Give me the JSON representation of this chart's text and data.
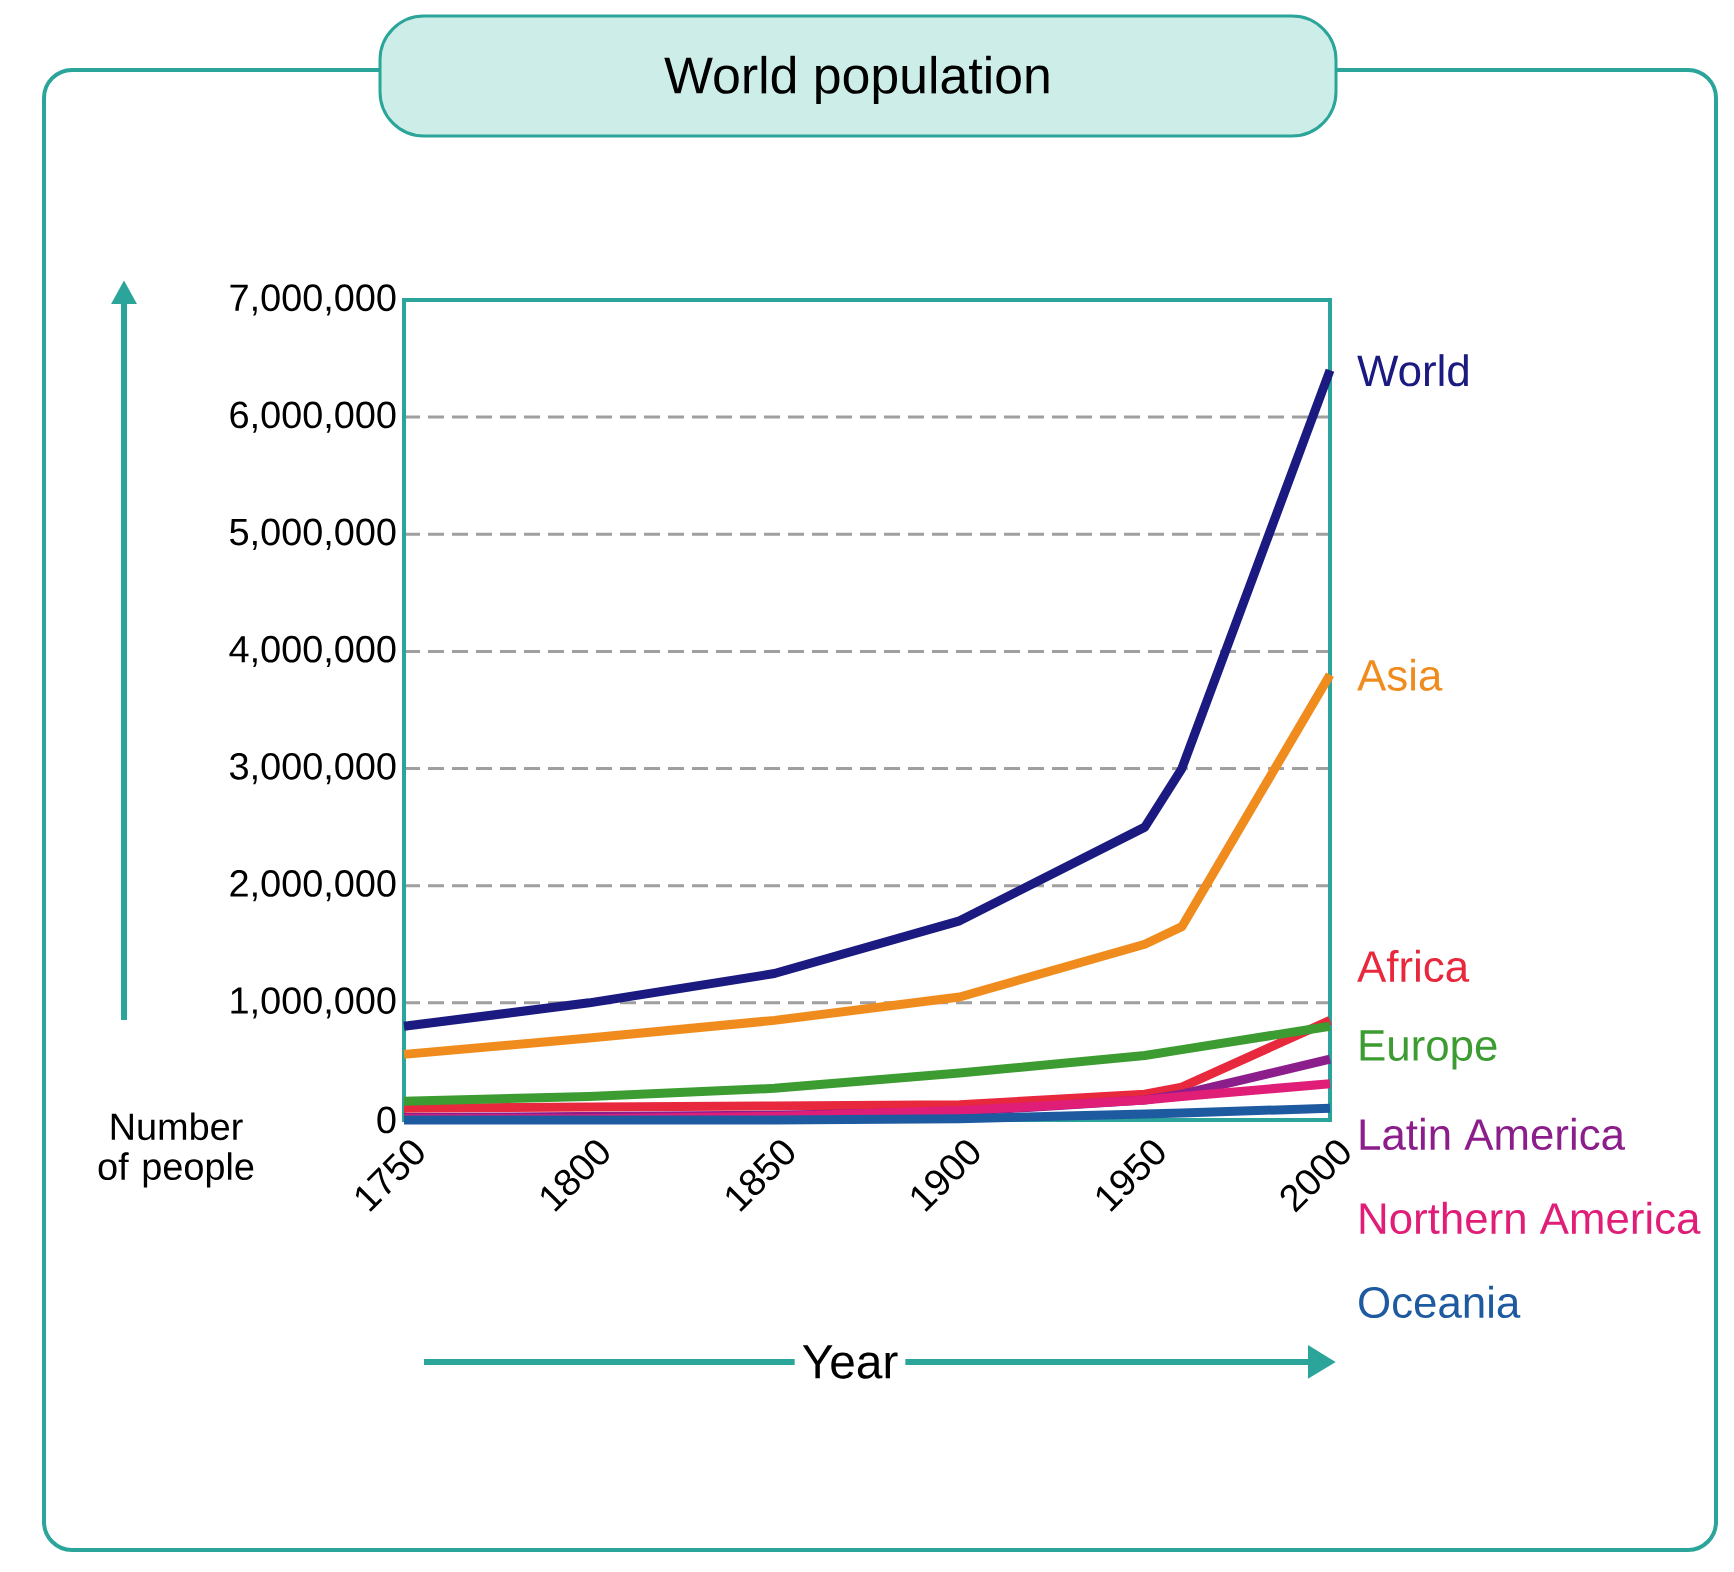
{
  "chart_data": {
    "type": "line",
    "title": "World population",
    "xlabel": "Year",
    "ylabel": "Number of people",
    "x": [
      1750,
      1800,
      1850,
      1900,
      1950,
      1960,
      2000
    ],
    "series": [
      {
        "name": "World",
        "color": "#1a1a80",
        "values": [
          800000,
          1000000,
          1250000,
          1700000,
          2500000,
          3000000,
          6400000
        ]
      },
      {
        "name": "Asia",
        "color": "#f08c1e",
        "values": [
          560000,
          700000,
          850000,
          1050000,
          1500000,
          1650000,
          3800000
        ]
      },
      {
        "name": "Africa",
        "color": "#e8283c",
        "values": [
          100000,
          110000,
          120000,
          130000,
          220000,
          280000,
          850000
        ]
      },
      {
        "name": "Europe",
        "color": "#3c9c32",
        "values": [
          160000,
          200000,
          270000,
          400000,
          550000,
          600000,
          800000
        ]
      },
      {
        "name": "Latin America",
        "color": "#8c1e8c",
        "values": [
          20000,
          30000,
          40000,
          70000,
          170000,
          220000,
          520000
        ]
      },
      {
        "name": "Northern America",
        "color": "#e01e78",
        "values": [
          10000,
          10000,
          30000,
          80000,
          170000,
          200000,
          310000
        ]
      },
      {
        "name": "Oceania",
        "color": "#1e5aa0",
        "values": [
          0,
          0,
          0,
          10000,
          50000,
          60000,
          100000
        ]
      }
    ],
    "xlim": [
      1750,
      2000
    ],
    "xticks": [
      1750,
      1800,
      1850,
      1900,
      1950,
      2000
    ],
    "ylim": [
      0,
      7000000
    ],
    "yticks": [
      {
        "value": 0,
        "label": "0"
      },
      {
        "value": 1000000,
        "label": "1,000,000"
      },
      {
        "value": 2000000,
        "label": "2,000,000"
      },
      {
        "value": 3000000,
        "label": "3,000,000"
      },
      {
        "value": 4000000,
        "label": "4,000,000"
      },
      {
        "value": 5000000,
        "label": "5,000,000"
      },
      {
        "value": 6000000,
        "label": "6,000,000"
      },
      {
        "value": 7000000,
        "label": "7,000,000"
      }
    ],
    "grid": "y",
    "legend": false
  }
}
